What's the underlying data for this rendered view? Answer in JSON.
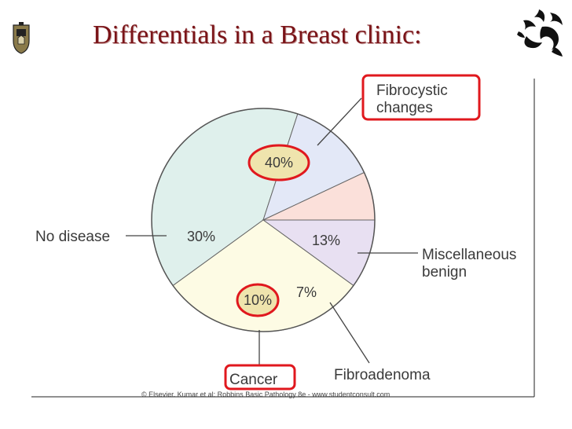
{
  "title": "Differentials in a Breast clinic:",
  "copyright": "© Elsevier. Kumar et al: Robbins Basic Pathology 8e - www.studentconsult.com",
  "highlight_color": "#e0181e",
  "chart_data": {
    "type": "pie",
    "slices": [
      {
        "label_lines": [
          "Fibrocystic",
          "changes"
        ],
        "value": 40,
        "pct_label": "40%",
        "color": "#dff0ec",
        "highlighted": true
      },
      {
        "label_lines": [
          "Miscellaneous",
          "benign"
        ],
        "value": 13,
        "pct_label": "13%",
        "color": "#e3e8f7",
        "highlighted": false
      },
      {
        "label_lines": [
          "Fibroadenoma"
        ],
        "value": 7,
        "pct_label": "7%",
        "color": "#fbe0da",
        "highlighted": false
      },
      {
        "label_lines": [
          "Cancer"
        ],
        "value": 10,
        "pct_label": "10%",
        "color": "#e8e0f2",
        "highlighted": true
      },
      {
        "label_lines": [
          "No disease"
        ],
        "value": 30,
        "pct_label": "30%",
        "color": "#fdfbe4",
        "highlighted": false
      }
    ]
  }
}
